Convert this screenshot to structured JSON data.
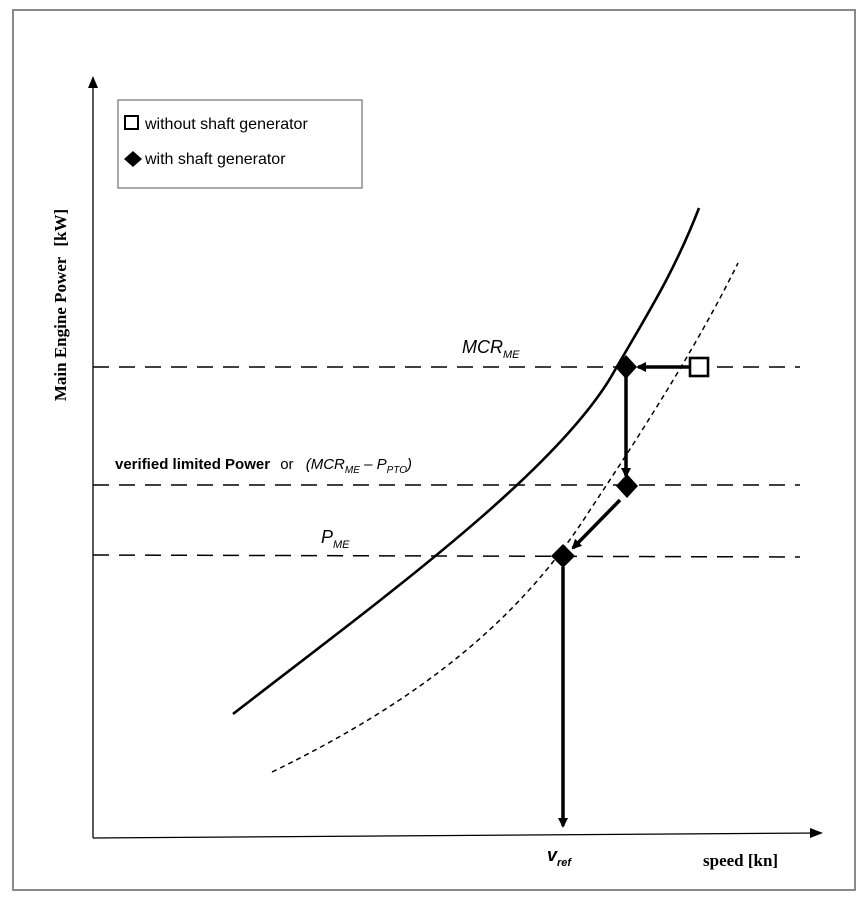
{
  "axes": {
    "y_label": "Main Engine Power",
    "y_unit": "[kW]",
    "x_label": "speed [kn]"
  },
  "legend": {
    "items": [
      {
        "marker": "open-square",
        "label": "without shaft generator"
      },
      {
        "marker": "filled-diamond",
        "label": "with shaft generator"
      }
    ]
  },
  "levels": {
    "mcr": {
      "base": "MCR",
      "sub": "ME"
    },
    "verified": {
      "prefix": "verified limited Power",
      "or": "or",
      "open": "(",
      "mcr_base": "MCR",
      "mcr_sub": "ME",
      "minus": " – ",
      "p_base": "P",
      "p_sub": "PTO",
      "close": ")"
    },
    "pme": {
      "base": "P",
      "sub": "ME"
    }
  },
  "vref": {
    "base": "v",
    "sub": "ref"
  },
  "colors": {
    "line": "#000000",
    "frame": "#8a8a8a",
    "background": "#ffffff"
  }
}
